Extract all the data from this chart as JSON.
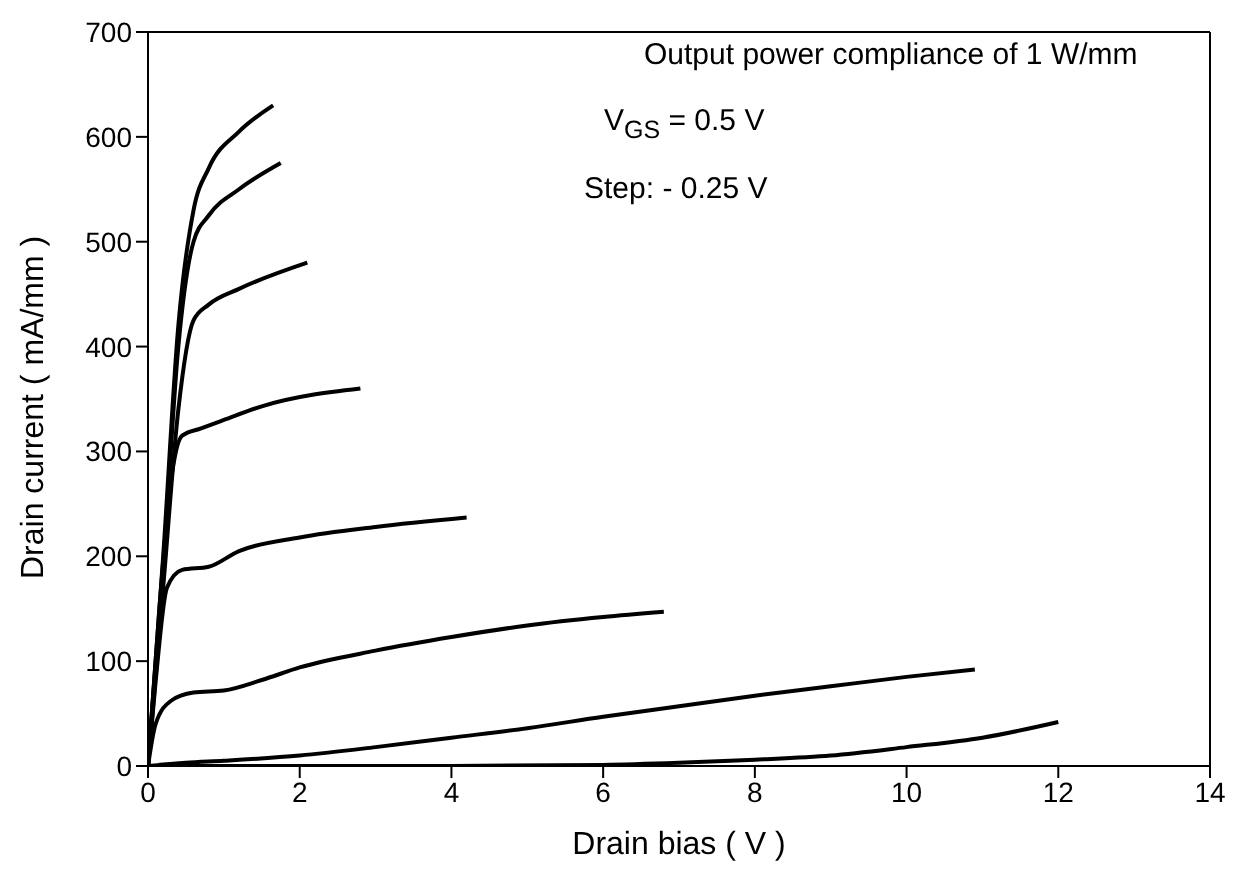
{
  "chart_data": {
    "type": "line",
    "xlabel": "Drain bias ( V )",
    "ylabel": "Drain current ( mA/mm )",
    "annotations": [
      "Output power compliance of 1 W/mm",
      "V$_{GS}$ = 0.5 V",
      "Step: - 0.25 V"
    ],
    "xlim": [
      0,
      14
    ],
    "xticks": [
      0,
      2,
      4,
      6,
      8,
      10,
      12,
      14
    ],
    "ylim": [
      0,
      700
    ],
    "yticks": [
      0,
      100,
      200,
      300,
      400,
      500,
      600,
      700
    ],
    "grid": false,
    "marker": "none",
    "line_style": "solid",
    "series": [
      {
        "color": "#000000",
        "x": [
          0,
          0.2,
          0.4,
          0.6,
          0.8,
          1.2,
          1.65
        ],
        "values": [
          0,
          200,
          420,
          530,
          570,
          605,
          630
        ]
      },
      {
        "color": "#000000",
        "x": [
          0,
          0.2,
          0.4,
          0.6,
          0.8,
          1.2,
          1.75
        ],
        "values": [
          0,
          190,
          400,
          500,
          525,
          550,
          575
        ]
      },
      {
        "color": "#000000",
        "x": [
          0,
          0.2,
          0.4,
          0.6,
          0.8,
          1.2,
          2.1
        ],
        "values": [
          0,
          170,
          340,
          425,
          440,
          455,
          480
        ]
      },
      {
        "color": "#000000",
        "x": [
          0,
          0.15,
          0.3,
          0.45,
          0.7,
          1,
          1.5,
          2.8
        ],
        "values": [
          0,
          150,
          270,
          315,
          322,
          330,
          343,
          360
        ]
      },
      {
        "color": "#000000",
        "x": [
          0,
          0.1,
          0.25,
          0.45,
          0.8,
          1.2,
          2,
          3,
          4.2
        ],
        "values": [
          0,
          80,
          170,
          187,
          190,
          205,
          218,
          228,
          237
        ]
      },
      {
        "color": "#000000",
        "x": [
          0,
          0.1,
          0.3,
          0.6,
          1,
          1.5,
          2,
          3,
          4,
          5,
          6,
          6.8
        ],
        "values": [
          0,
          40,
          62,
          70,
          72,
          82,
          94,
          110,
          123,
          134,
          142,
          147
        ]
      },
      {
        "color": "#000000",
        "x": [
          0,
          0.5,
          1,
          2,
          3,
          4,
          5,
          6,
          7,
          8,
          9,
          10,
          10.9
        ],
        "values": [
          0,
          3,
          5,
          10,
          18,
          27,
          36,
          47,
          57,
          67,
          76,
          85,
          92
        ]
      },
      {
        "color": "#000000",
        "x": [
          0,
          2,
          4,
          6,
          7,
          8,
          9,
          10,
          11,
          12
        ],
        "values": [
          0,
          0,
          0,
          1,
          3,
          6,
          10,
          18,
          27,
          42
        ]
      }
    ]
  }
}
